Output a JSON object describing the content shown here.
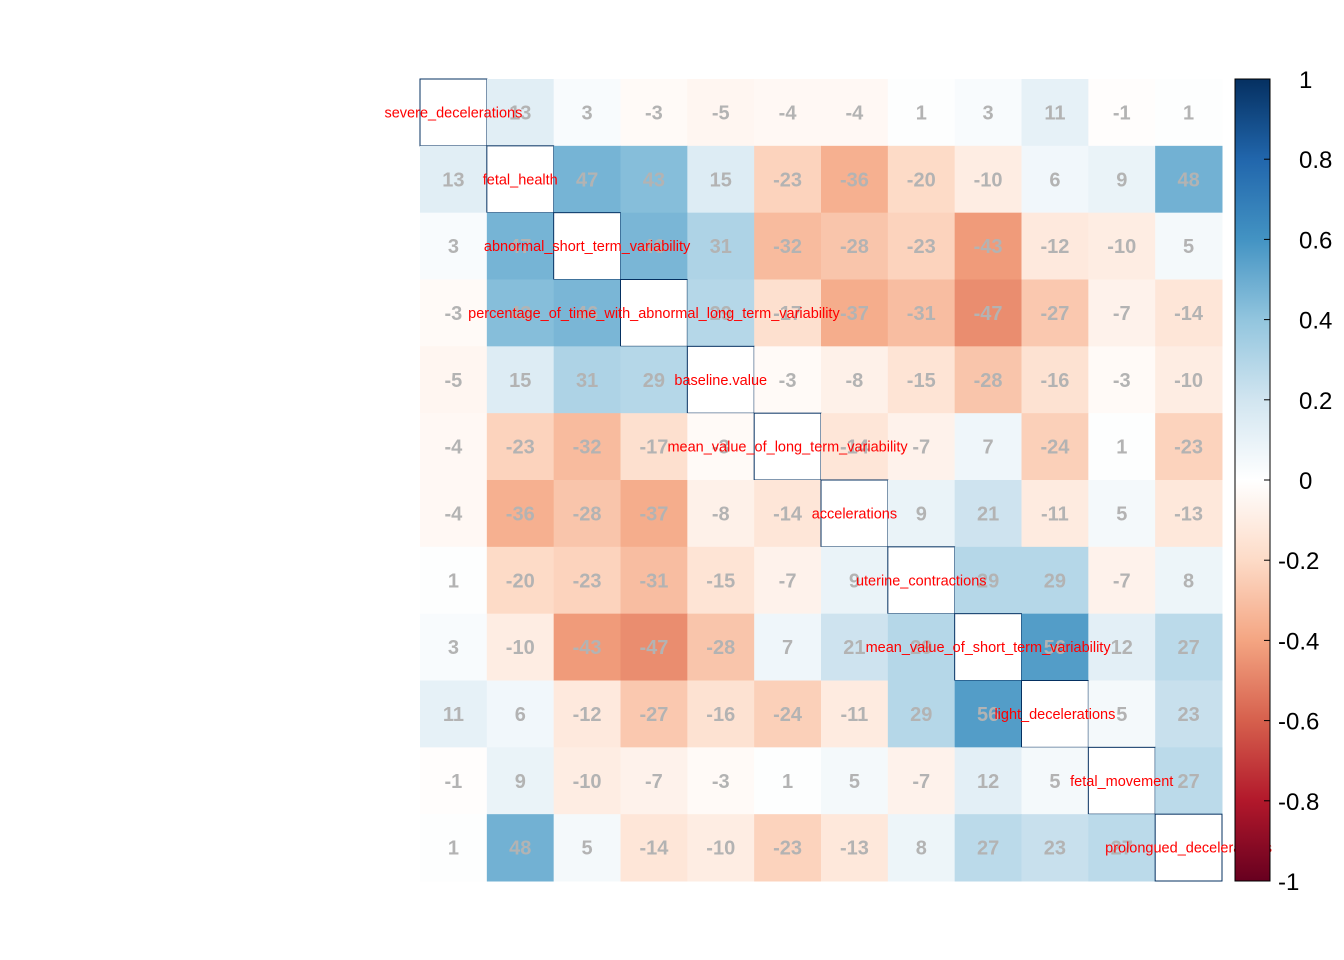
{
  "chart_data": {
    "type": "heatmap",
    "title": "",
    "variables": [
      "severe_decelerations",
      "fetal_health",
      "abnormal_short_term_variability",
      "percentage_of_time_with_abnormal_long_term_variability",
      "baseline.value",
      "mean_value_of_long_term_variability",
      "accelerations",
      "uterine_contractions",
      "mean_value_of_short_term_variability",
      "light_decelerations",
      "fetal_movement",
      "prolongued_decelerations"
    ],
    "values": [
      [
        null,
        13,
        3,
        -3,
        -5,
        -4,
        -4,
        1,
        3,
        11,
        -1,
        1
      ],
      [
        13,
        null,
        47,
        43,
        15,
        -23,
        -36,
        -20,
        -10,
        6,
        9,
        48
      ],
      [
        3,
        47,
        null,
        46,
        31,
        -32,
        -28,
        -23,
        -43,
        -12,
        -10,
        5
      ],
      [
        -3,
        43,
        46,
        null,
        29,
        -17,
        -37,
        -31,
        -47,
        -27,
        -7,
        -14
      ],
      [
        -5,
        15,
        31,
        29,
        null,
        -3,
        -8,
        -15,
        -28,
        -16,
        -3,
        -10
      ],
      [
        -4,
        -23,
        -32,
        -17,
        -3,
        null,
        -14,
        -7,
        7,
        -24,
        1,
        -23
      ],
      [
        -4,
        -36,
        -28,
        -37,
        -8,
        -14,
        null,
        9,
        21,
        -11,
        5,
        -13
      ],
      [
        1,
        -20,
        -23,
        -31,
        -15,
        -7,
        9,
        null,
        29,
        29,
        -7,
        8
      ],
      [
        3,
        -10,
        -43,
        -47,
        -28,
        7,
        21,
        29,
        null,
        56,
        12,
        27
      ],
      [
        11,
        6,
        -12,
        -27,
        -16,
        -24,
        -11,
        29,
        56,
        null,
        5,
        23
      ],
      [
        -1,
        9,
        -10,
        -7,
        -3,
        1,
        5,
        -7,
        12,
        5,
        null,
        27
      ],
      [
        1,
        48,
        5,
        -14,
        -10,
        -23,
        -13,
        8,
        27,
        23,
        27,
        null
      ]
    ],
    "colorbar": {
      "range": [
        -1,
        1
      ],
      "ticks": [
        "1",
        "0.8",
        "0.6",
        "0.4",
        "0.2",
        "0",
        "-0.2",
        "-0.4",
        "-0.6",
        "-0.8",
        "-1"
      ]
    },
    "colors": {
      "negative_extreme": "#67001f",
      "neutral": "#ffffff",
      "positive_extreme": "#053061",
      "cell_text": "#b3b3b3",
      "diagonal_label": "#ff0000"
    }
  }
}
